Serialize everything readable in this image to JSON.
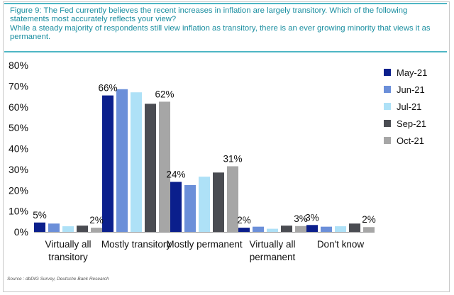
{
  "figure": {
    "title_lines": [
      "Figure 9: The Fed currently believes the recent increases in inflation are largely transitory. Which of the following",
      "statements most accurately reflects your view?",
      "While a steady majority of respondents still view inflation as transitory, there is an ever growing minority that views it as",
      "permanent."
    ],
    "source": "Source : dbDIG Survey, Deutsche Bank Research"
  },
  "chart_data": {
    "type": "bar",
    "categories": [
      [
        "Virtually all",
        "transitory"
      ],
      [
        "Mostly transitory"
      ],
      [
        "Mostly permanent"
      ],
      [
        "Virtually all",
        "permanent"
      ],
      [
        "Don't know"
      ]
    ],
    "series": [
      {
        "name": "May-21",
        "color": "#0b1f8c",
        "values": [
          4.5,
          65.5,
          24,
          2,
          3.3
        ]
      },
      {
        "name": "Jun-21",
        "color": "#6b8fd9",
        "values": [
          4,
          68.5,
          22.5,
          2.5,
          2.5
        ]
      },
      {
        "name": "Jul-21",
        "color": "#aee1f7",
        "values": [
          2.7,
          67,
          26.5,
          1.5,
          2.7
        ]
      },
      {
        "name": "Sep-21",
        "color": "#4a4c52",
        "values": [
          3,
          61.5,
          28.5,
          3,
          4
        ]
      },
      {
        "name": "Oct-21",
        "color": "#a6a6a6",
        "values": [
          2,
          62.5,
          31.5,
          2.8,
          2.3
        ]
      }
    ],
    "data_labels": [
      {
        "category": 0,
        "series": 0,
        "text": "5%"
      },
      {
        "category": 0,
        "series": 4,
        "text": "2%"
      },
      {
        "category": 1,
        "series": 0,
        "text": "66%"
      },
      {
        "category": 1,
        "series": 4,
        "text": "62%"
      },
      {
        "category": 2,
        "series": 0,
        "text": "24%"
      },
      {
        "category": 2,
        "series": 4,
        "text": "31%"
      },
      {
        "category": 3,
        "series": 0,
        "text": "2%"
      },
      {
        "category": 3,
        "series": 4,
        "text": "3%"
      },
      {
        "category": 4,
        "series": 0,
        "text": "3%"
      },
      {
        "category": 4,
        "series": 4,
        "text": "2%"
      }
    ],
    "y_ticks": [
      "0%",
      "10%",
      "20%",
      "30%",
      "40%",
      "50%",
      "60%",
      "70%",
      "80%"
    ],
    "ylim": [
      0,
      80
    ],
    "title": "",
    "xlabel": "",
    "ylabel": "",
    "legend_position": "top-right",
    "grid": false
  }
}
